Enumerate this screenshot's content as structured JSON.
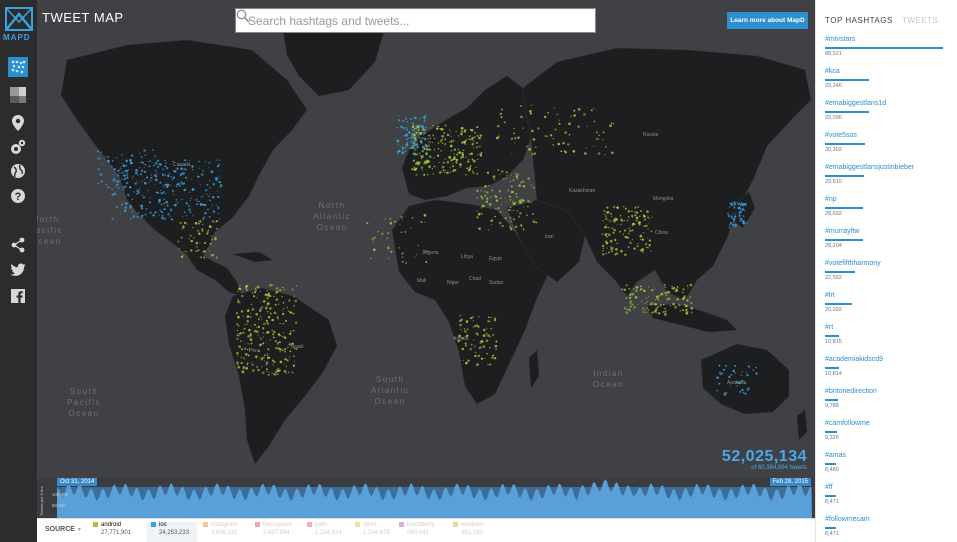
{
  "sidebar": {
    "logo_text": "MAPD",
    "icons": [
      "heatmap-icon",
      "grid-icon",
      "location-pin-icon",
      "settings-icon",
      "globe-icon",
      "help-icon",
      "share-icon",
      "twitter-icon",
      "facebook-icon"
    ]
  },
  "header": {
    "title": "TWEET MAP",
    "search_placeholder": "Search hashtags and tweets...",
    "learn_more_label": "Learn more about MapD"
  },
  "map": {
    "oceans": [
      {
        "label": "North\nAtlantic\nOcean"
      },
      {
        "label": "North\nPacific\nOcean"
      },
      {
        "label": "South\nPacific\nOcean"
      },
      {
        "label": "South\nAtlantic\nOcean"
      },
      {
        "label": "Indian\nOcean"
      }
    ],
    "countries": [
      "Canada",
      "Russia",
      "Kazakhstan",
      "China",
      "Mongolia",
      "Brazil",
      "Peru",
      "Australia",
      "Algeria",
      "Libya",
      "Egypt",
      "Mali",
      "Niger",
      "Sudan",
      "Chad",
      "Angola",
      "Iran"
    ],
    "counter_value": "52,025,134",
    "counter_sub": "of 60,384,894 tweets"
  },
  "timeline": {
    "start_date": "Oct 31, 2014",
    "end_date": "Feb 28, 2015",
    "y_label": "Tweets per 6 hrs",
    "ticks": [
      "100,000",
      "50,000"
    ]
  },
  "legend": {
    "source_label": "SOURCE",
    "items": [
      {
        "name": "android",
        "count": "27,771,901",
        "color": "#a7c23a",
        "state": "on"
      },
      {
        "name": "ios",
        "count": "24,253,233",
        "color": "#3aa0e0",
        "state": "active"
      },
      {
        "name": "instagram",
        "count": "3,609,115",
        "color": "#f0c89a",
        "state": "dim"
      },
      {
        "name": "foursquare",
        "count": "2,437,544",
        "color": "#f0a8a8",
        "state": "dim"
      },
      {
        "name": "path",
        "count": "1,214,634",
        "color": "#f4b0b0",
        "state": "dim"
      },
      {
        "name": "other",
        "count": "1,104,678",
        "color": "#f0e0a0",
        "state": "dim"
      },
      {
        "name": "blackberry",
        "count": "560,041",
        "color": "#d8b0e0",
        "state": "dim"
      },
      {
        "name": "windows",
        "count": "361,230",
        "color": "#d8e0b0",
        "state": "dim"
      }
    ]
  },
  "panel": {
    "tab_hashtags": "TOP HASHTAGS",
    "tab_tweets": "TWEETS",
    "hashtags": [
      {
        "tag": "#mtvstars",
        "count": "88,521",
        "value": 88521
      },
      {
        "tag": "#kca",
        "count": "33,246",
        "value": 33246
      },
      {
        "tag": "#emabiggestfans1d",
        "count": "33,096",
        "value": 33096
      },
      {
        "tag": "#vote5sos",
        "count": "30,302",
        "value": 30302
      },
      {
        "tag": "#emabiggestfansjustinbieber",
        "count": "29,610",
        "value": 29610
      },
      {
        "tag": "#np",
        "count": "28,692",
        "value": 28692
      },
      {
        "tag": "#murrayftw",
        "count": "28,204",
        "value": 28204
      },
      {
        "tag": "#votefifthharmony",
        "count": "22,582",
        "value": 22582
      },
      {
        "tag": "#lrt",
        "count": "20,092",
        "value": 20092
      },
      {
        "tag": "#rt",
        "count": "10,815",
        "value": 10815
      },
      {
        "tag": "#academiakidscd9",
        "count": "10,814",
        "value": 10814
      },
      {
        "tag": "#britonedirection",
        "count": "9,788",
        "value": 9788
      },
      {
        "tag": "#camfollowme",
        "count": "9,326",
        "value": 9326
      },
      {
        "tag": "#amas",
        "count": "8,480",
        "value": 8480
      },
      {
        "tag": "#ff",
        "count": "8,471",
        "value": 8471
      },
      {
        "tag": "#followmecam",
        "count": "8,471",
        "value": 8471
      }
    ]
  }
}
